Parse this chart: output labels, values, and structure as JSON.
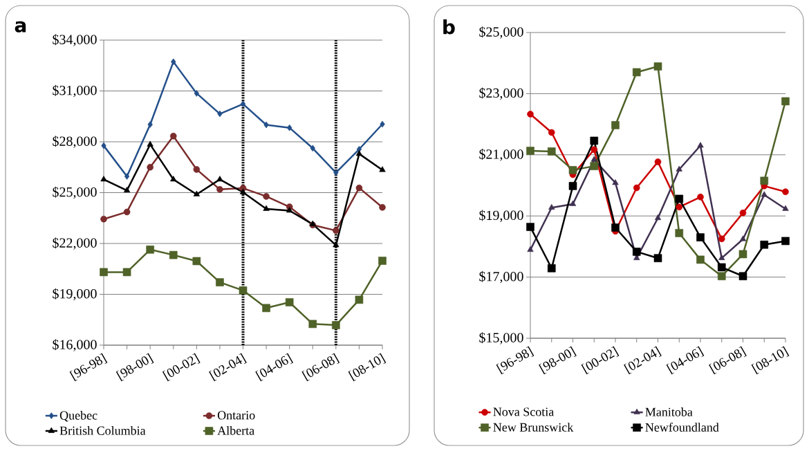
{
  "chart_data": [
    {
      "type": "line",
      "title": "a",
      "categories": [
        "[96-98]",
        null,
        "[98-00]",
        null,
        "[00-02]",
        null,
        "[02-04]",
        null,
        "[04-06]",
        null,
        "[06-08]",
        null,
        "[08-10]"
      ],
      "ylim": [
        16000,
        34000
      ],
      "yticks": [
        {
          "value": 16000,
          "label": "$16,000"
        },
        {
          "value": 19000,
          "label": "$19,000"
        },
        {
          "value": 22000,
          "label": "$22,000"
        },
        {
          "value": 25000,
          "label": "$25,000"
        },
        {
          "value": 28000,
          "label": "$28,000"
        },
        {
          "value": 31000,
          "label": "$31,000"
        },
        {
          "value": 34000,
          "label": "$34,000"
        }
      ],
      "grid": "y",
      "legend": "bottom",
      "ref_lines": [
        {
          "axis": "x",
          "value": "[02-04]",
          "color": "#000000",
          "line_style": "dotted"
        },
        {
          "axis": "x",
          "value": "[06-08]",
          "color": "#000000",
          "line_style": "dotted"
        }
      ],
      "series": [
        {
          "name": "Quebec",
          "color": "#24508a",
          "marker": "diamond",
          "values": [
            27770,
            25960,
            29020,
            32720,
            30860,
            29650,
            30230,
            29000,
            28830,
            27620,
            26180,
            27560,
            29040
          ]
        },
        {
          "name": "Ontario",
          "color": "#7b2c2c",
          "marker": "circle",
          "values": [
            23440,
            23860,
            26500,
            28340,
            26370,
            25190,
            25260,
            24780,
            24160,
            23090,
            22760,
            25280,
            24130
          ]
        },
        {
          "name": "British Columbia",
          "color": "#000000",
          "marker": "triangle",
          "values": [
            25780,
            25130,
            27840,
            25780,
            24900,
            25780,
            25020,
            24040,
            23940,
            23140,
            21900,
            27290,
            26340
          ]
        },
        {
          "name": "Alberta",
          "color": "#4f6228",
          "marker": "square",
          "values": [
            20310,
            20310,
            21640,
            21320,
            20960,
            19710,
            19230,
            18190,
            18530,
            17250,
            17180,
            18680,
            20980
          ]
        }
      ]
    },
    {
      "type": "line",
      "title": "b",
      "categories": [
        "[96-98]",
        null,
        "[98-00]",
        null,
        "[00-02]",
        null,
        "[02-04]",
        null,
        "[04-06]",
        null,
        "[06-08]",
        null,
        "[08-10]"
      ],
      "ylim": [
        15000,
        25000
      ],
      "yticks": [
        {
          "value": 15000,
          "label": "$15,000"
        },
        {
          "value": 17000,
          "label": "$17,000"
        },
        {
          "value": 19000,
          "label": "$19,000"
        },
        {
          "value": 21000,
          "label": "$21,000"
        },
        {
          "value": 23000,
          "label": "$23,000"
        },
        {
          "value": 25000,
          "label": "$25,000"
        }
      ],
      "grid": "y",
      "legend": "bottom",
      "series": [
        {
          "name": "Nova Scotia",
          "color": "#cc0000",
          "marker": "circle",
          "values": [
            22330,
            21730,
            20350,
            21170,
            18500,
            19920,
            20770,
            19290,
            19620,
            18250,
            19100,
            19980,
            19790
          ]
        },
        {
          "name": "Manitoba",
          "color": "#403151",
          "marker": "triangle",
          "values": [
            17890,
            19270,
            19390,
            20840,
            20080,
            17620,
            18930,
            20520,
            21300,
            17620,
            18240,
            19690,
            19230
          ]
        },
        {
          "name": "New Brunswick",
          "color": "#4f6228",
          "marker": "square",
          "values": [
            21130,
            21110,
            20500,
            20630,
            21970,
            23700,
            23890,
            18440,
            17570,
            17030,
            17750,
            20150,
            22750
          ]
        },
        {
          "name": "Newfoundland",
          "color": "#000000",
          "marker": "square",
          "values": [
            18640,
            17290,
            19980,
            21460,
            18620,
            17830,
            17620,
            19560,
            18300,
            17320,
            17030,
            18060,
            18180
          ]
        }
      ]
    }
  ]
}
